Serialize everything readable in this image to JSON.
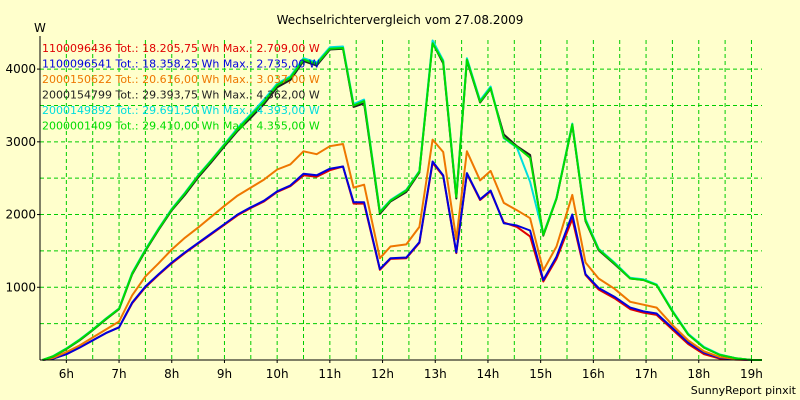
{
  "chart_data": {
    "type": "line",
    "title": "Wechselrichtervergleich vom 27.08.2009",
    "ylabel": "W",
    "xlabel": "",
    "x_ticks": [
      "6h",
      "7h",
      "8h",
      "9h",
      "10h",
      "11h",
      "12h",
      "13h",
      "14h",
      "15h",
      "16h",
      "17h",
      "18h",
      "19h"
    ],
    "xlim": [
      5.5,
      19.2
    ],
    "ylim": [
      0,
      4400
    ],
    "y_ticks": [
      1000,
      2000,
      3000,
      4000
    ],
    "grid": true,
    "legend_placement": "top-left",
    "footer": "SunnyReport pinxit",
    "x": [
      5.55,
      5.75,
      6.0,
      6.25,
      6.5,
      6.75,
      7.0,
      7.25,
      7.5,
      7.75,
      8.0,
      8.25,
      8.5,
      8.75,
      9.0,
      9.25,
      9.5,
      9.75,
      10.0,
      10.25,
      10.5,
      10.75,
      11.0,
      11.25,
      11.45,
      11.65,
      11.95,
      12.15,
      12.45,
      12.7,
      12.95,
      13.15,
      13.4,
      13.6,
      13.85,
      14.05,
      14.3,
      14.55,
      14.8,
      15.05,
      15.3,
      15.6,
      15.85,
      16.1,
      16.4,
      16.7,
      16.95,
      17.2,
      17.5,
      17.8,
      18.1,
      18.4,
      18.7,
      19.0,
      19.2
    ],
    "series": [
      {
        "name": "1100096436 Tot.: 18.205,75 Wh Max.: 2.709,00 W",
        "color": "#e00000",
        "values": [
          0,
          20,
          80,
          170,
          270,
          370,
          450,
          780,
          1000,
          1170,
          1330,
          1470,
          1600,
          1730,
          1860,
          1990,
          2090,
          2180,
          2310,
          2390,
          2540,
          2520,
          2610,
          2660,
          2150,
          2150,
          1240,
          1390,
          1400,
          1610,
          2710,
          2530,
          1470,
          2560,
          2200,
          2320,
          1890,
          1830,
          1700,
          1080,
          1390,
          1940,
          1170,
          970,
          850,
          700,
          650,
          620,
          420,
          220,
          80,
          20,
          5,
          0,
          0
        ]
      },
      {
        "name": "1100096541 Tot.: 18.358,25 Wh Max.: 2.735,00 W",
        "color": "#0000dd",
        "values": [
          0,
          20,
          80,
          170,
          270,
          370,
          450,
          790,
          1010,
          1180,
          1340,
          1480,
          1610,
          1740,
          1870,
          2000,
          2100,
          2190,
          2320,
          2400,
          2560,
          2540,
          2630,
          2660,
          2170,
          2170,
          1250,
          1400,
          1410,
          1620,
          2730,
          2540,
          1480,
          2570,
          2210,
          2330,
          1880,
          1850,
          1780,
          1100,
          1420,
          2000,
          1180,
          990,
          870,
          720,
          670,
          640,
          440,
          240,
          100,
          30,
          10,
          0,
          0
        ]
      },
      {
        "name": "2000150622 Tot.: 20.616,00 Wh Max.: 3.037,00 W",
        "color": "#ee7700",
        "values": [
          0,
          30,
          110,
          200,
          310,
          420,
          530,
          890,
          1150,
          1330,
          1520,
          1680,
          1820,
          1970,
          2120,
          2260,
          2370,
          2480,
          2620,
          2690,
          2870,
          2830,
          2940,
          2970,
          2370,
          2410,
          1400,
          1560,
          1590,
          1830,
          3030,
          2860,
          1660,
          2870,
          2470,
          2600,
          2160,
          2060,
          1950,
          1230,
          1560,
          2270,
          1340,
          1120,
          980,
          800,
          760,
          720,
          480,
          270,
          120,
          40,
          15,
          0,
          0
        ]
      },
      {
        "name": "2000154799 Tot.: 29.393,75 Wh Max.: 4.362,00 W",
        "color": "#222222",
        "values": [
          0,
          50,
          150,
          270,
          410,
          560,
          700,
          1180,
          1500,
          1790,
          2060,
          2270,
          2510,
          2720,
          2940,
          3150,
          3330,
          3520,
          3750,
          3850,
          4110,
          4050,
          4270,
          4280,
          3480,
          3530,
          2010,
          2180,
          2310,
          2580,
          4362,
          4080,
          2220,
          4120,
          3540,
          3730,
          3100,
          2940,
          2820,
          1710,
          2220,
          3230,
          1910,
          1510,
          1320,
          1120,
          1100,
          1030,
          670,
          350,
          170,
          70,
          25,
          0,
          0
        ]
      },
      {
        "name": "2000149892 Tot.: 29.691,50 Wh Max.: 4.393,00 W",
        "color": "#00dddd",
        "values": [
          0,
          55,
          160,
          280,
          420,
          570,
          710,
          1200,
          1520,
          1810,
          2080,
          2300,
          2540,
          2750,
          2970,
          3190,
          3380,
          3580,
          3800,
          3900,
          4150,
          4090,
          4300,
          4310,
          3520,
          3580,
          2040,
          2200,
          2340,
          2600,
          4393,
          4120,
          2250,
          4150,
          3570,
          3760,
          3050,
          2920,
          2450,
          1730,
          2230,
          3250,
          1940,
          1530,
          1340,
          1130,
          1110,
          1040,
          680,
          360,
          180,
          75,
          25,
          0,
          0
        ]
      },
      {
        "name": "2000001409 Tot.: 29.410,00 Wh Max.: 4.355,00 W",
        "color": "#00dd00",
        "values": [
          0,
          52,
          155,
          275,
          415,
          565,
          705,
          1190,
          1510,
          1800,
          2070,
          2290,
          2530,
          2740,
          2960,
          3170,
          3360,
          3550,
          3780,
          3880,
          4130,
          4070,
          4280,
          4290,
          3500,
          3560,
          2030,
          2190,
          2330,
          2590,
          4355,
          4100,
          2240,
          4130,
          3550,
          3740,
          3060,
          2930,
          2780,
          1720,
          2220,
          3240,
          1920,
          1520,
          1330,
          1120,
          1100,
          1030,
          670,
          350,
          170,
          70,
          25,
          0,
          0
        ]
      }
    ]
  }
}
